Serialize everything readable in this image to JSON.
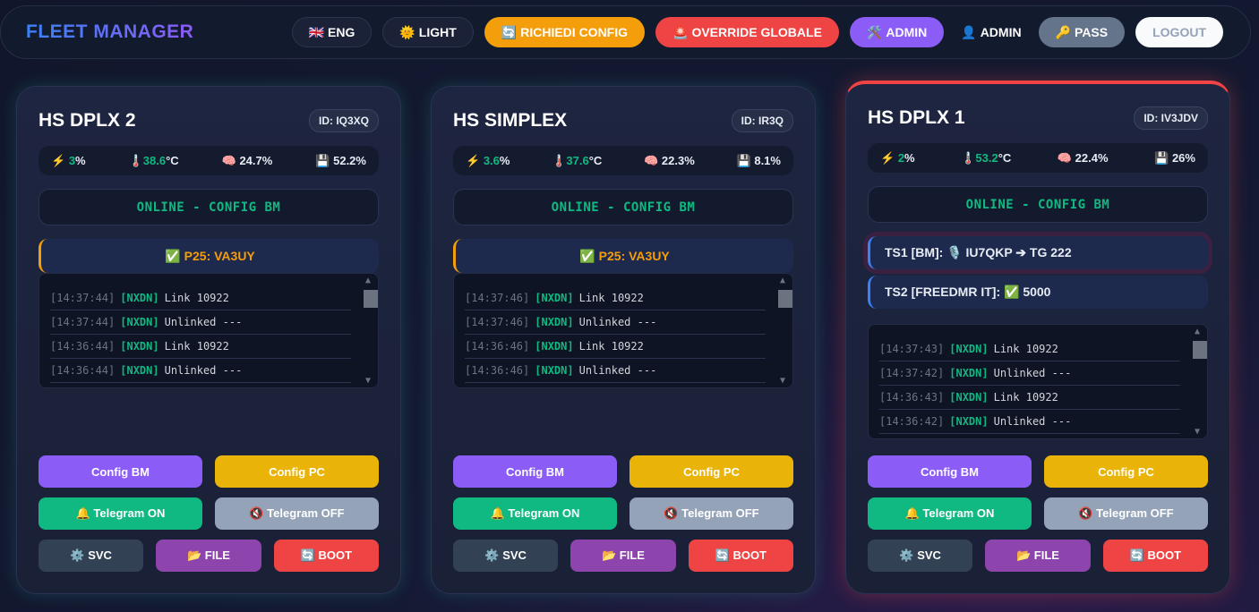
{
  "header": {
    "brand": "FLEET MANAGER",
    "buttons": [
      {
        "icon": "🇬🇧",
        "label": "ENG"
      },
      {
        "icon": "🌞",
        "label": "LIGHT"
      },
      {
        "icon": "🔄",
        "label": "RICHIEDI CONFIG"
      },
      {
        "icon": "🚨",
        "label": "OVERRIDE GLOBALE"
      },
      {
        "icon": "🛠️",
        "label": "ADMIN"
      },
      {
        "icon": "👤",
        "label": "ADMIN"
      },
      {
        "icon": "🔑",
        "label": "PASS"
      },
      {
        "icon": "",
        "label": "LOGOUT"
      }
    ]
  },
  "cards": [
    {
      "title": "HS DPLX 2",
      "id": "ID: IQ3XQ",
      "cpu": "3",
      "temp": "38.6",
      "ram": "24.7%",
      "disk": "52.2%",
      "status": "ONLINE - CONFIG BM",
      "banner_icon": "✅",
      "banner": "P25: VA3UY",
      "log": [
        {
          "t": "[14:37:44]",
          "tag": "[NXDN]",
          "m": "Link 10922"
        },
        {
          "t": "[14:37:44]",
          "tag": "[NXDN]",
          "m": "Unlinked ---"
        },
        {
          "t": "[14:36:44]",
          "tag": "[NXDN]",
          "m": "Link 10922"
        },
        {
          "t": "[14:36:44]",
          "tag": "[NXDN]",
          "m": "Unlinked ---"
        }
      ]
    },
    {
      "title": "HS SIMPLEX",
      "id": "ID: IR3Q",
      "cpu": "3.6",
      "temp": "37.6",
      "ram": "22.3%",
      "disk": "8.1%",
      "status": "ONLINE - CONFIG BM",
      "banner_icon": "✅",
      "banner": "P25: VA3UY",
      "log": [
        {
          "t": "[14:37:46]",
          "tag": "[NXDN]",
          "m": "Link 10922"
        },
        {
          "t": "[14:37:46]",
          "tag": "[NXDN]",
          "m": "Unlinked ---"
        },
        {
          "t": "[14:36:46]",
          "tag": "[NXDN]",
          "m": "Link 10922"
        },
        {
          "t": "[14:36:46]",
          "tag": "[NXDN]",
          "m": "Unlinked ---"
        }
      ]
    },
    {
      "title": "HS DPLX 1",
      "id": "ID: IV3JDV",
      "cpu": "2",
      "temp": "53.2",
      "ram": "22.4%",
      "disk": "26%",
      "status": "ONLINE - CONFIG BM",
      "ts1": "TS1 [BM]: 🎙️ IU7QKP ➔ TG 222",
      "ts2": "TS2 [FREEDMR IT]: ✅ 5000",
      "log": [
        {
          "t": "[14:37:43]",
          "tag": "[NXDN]",
          "m": "Link 10922"
        },
        {
          "t": "[14:37:42]",
          "tag": "[NXDN]",
          "m": "Unlinked ---"
        },
        {
          "t": "[14:36:43]",
          "tag": "[NXDN]",
          "m": "Link 10922"
        },
        {
          "t": "[14:36:42]",
          "tag": "[NXDN]",
          "m": "Unlinked ---"
        }
      ]
    }
  ],
  "labels": {
    "pct": "%",
    "deg": "°C",
    "config_bm": "Config BM",
    "config_pc": "Config PC",
    "tg_on": "🔔 Telegram ON",
    "tg_off": "🔇 Telegram OFF",
    "svc": "⚙️ SVC",
    "file": "📂 FILE",
    "boot": "🔄 BOOT",
    "cpu_icon": "⚡",
    "temp_icon": "🌡️",
    "ram_icon": "🧠",
    "disk_icon": "💾"
  }
}
